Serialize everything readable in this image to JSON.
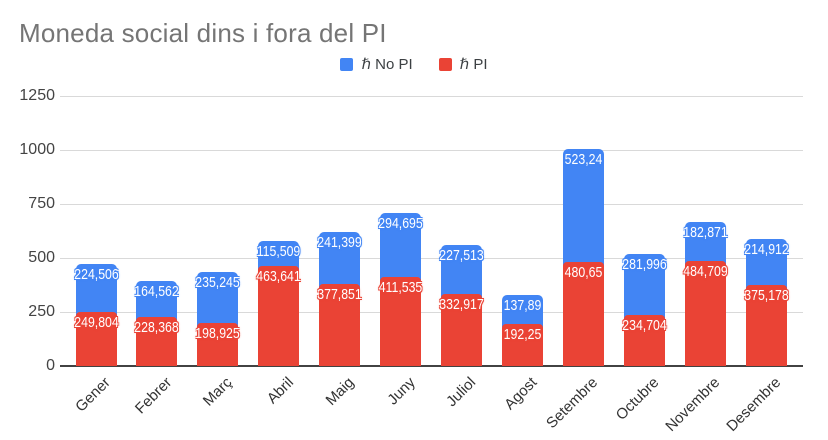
{
  "title": "Moneda social dins i fora del PI",
  "legend": [
    {
      "label": "ℏ No PI",
      "color": "#4285F4"
    },
    {
      "label": "ℏ PI",
      "color": "#EA4335"
    }
  ],
  "colors": {
    "background": "#ffffff",
    "gridline": "#d9d9d9",
    "axis": "#424242",
    "title_text": "#757575"
  },
  "chart_data": {
    "type": "bar",
    "stacked": true,
    "title": "Moneda social dins i fora del PI",
    "xlabel": "",
    "ylabel": "",
    "ylim": [
      0,
      1250
    ],
    "y_ticks": [
      0,
      250,
      500,
      750,
      1000,
      1250
    ],
    "grid": true,
    "legend_position": "top",
    "categories": [
      "Gener",
      "Febrer",
      "Març",
      "Abril",
      "Maig",
      "Juny",
      "Juliol",
      "Agost",
      "Setembre",
      "Octubre",
      "Novembre",
      "Desembre"
    ],
    "series": [
      {
        "name": "ℏ PI",
        "color": "#EA4335",
        "values": [
          249.804,
          228.368,
          198.925,
          463.641,
          377.851,
          411.535,
          332.917,
          192.25,
          480.65,
          234.704,
          484.709,
          375.178
        ],
        "labels": [
          "249,804",
          "228,368",
          "198,925",
          "463,641",
          "377,851",
          "411,535",
          "332,917",
          "192,25",
          "480,65",
          "234,704",
          "484,709",
          "375,178"
        ]
      },
      {
        "name": "ℏ No PI",
        "color": "#4285F4",
        "values": [
          224.506,
          164.562,
          235.245,
          115.509,
          241.399,
          294.695,
          227.513,
          137.89,
          523.24,
          281.996,
          182.871,
          214.912
        ],
        "labels": [
          "224,506",
          "164,562",
          "235,245",
          "115,509",
          "241,399",
          "294,695",
          "227,513",
          "137,89",
          "523,24",
          "281,996",
          "182,871",
          "214,912"
        ]
      }
    ]
  }
}
